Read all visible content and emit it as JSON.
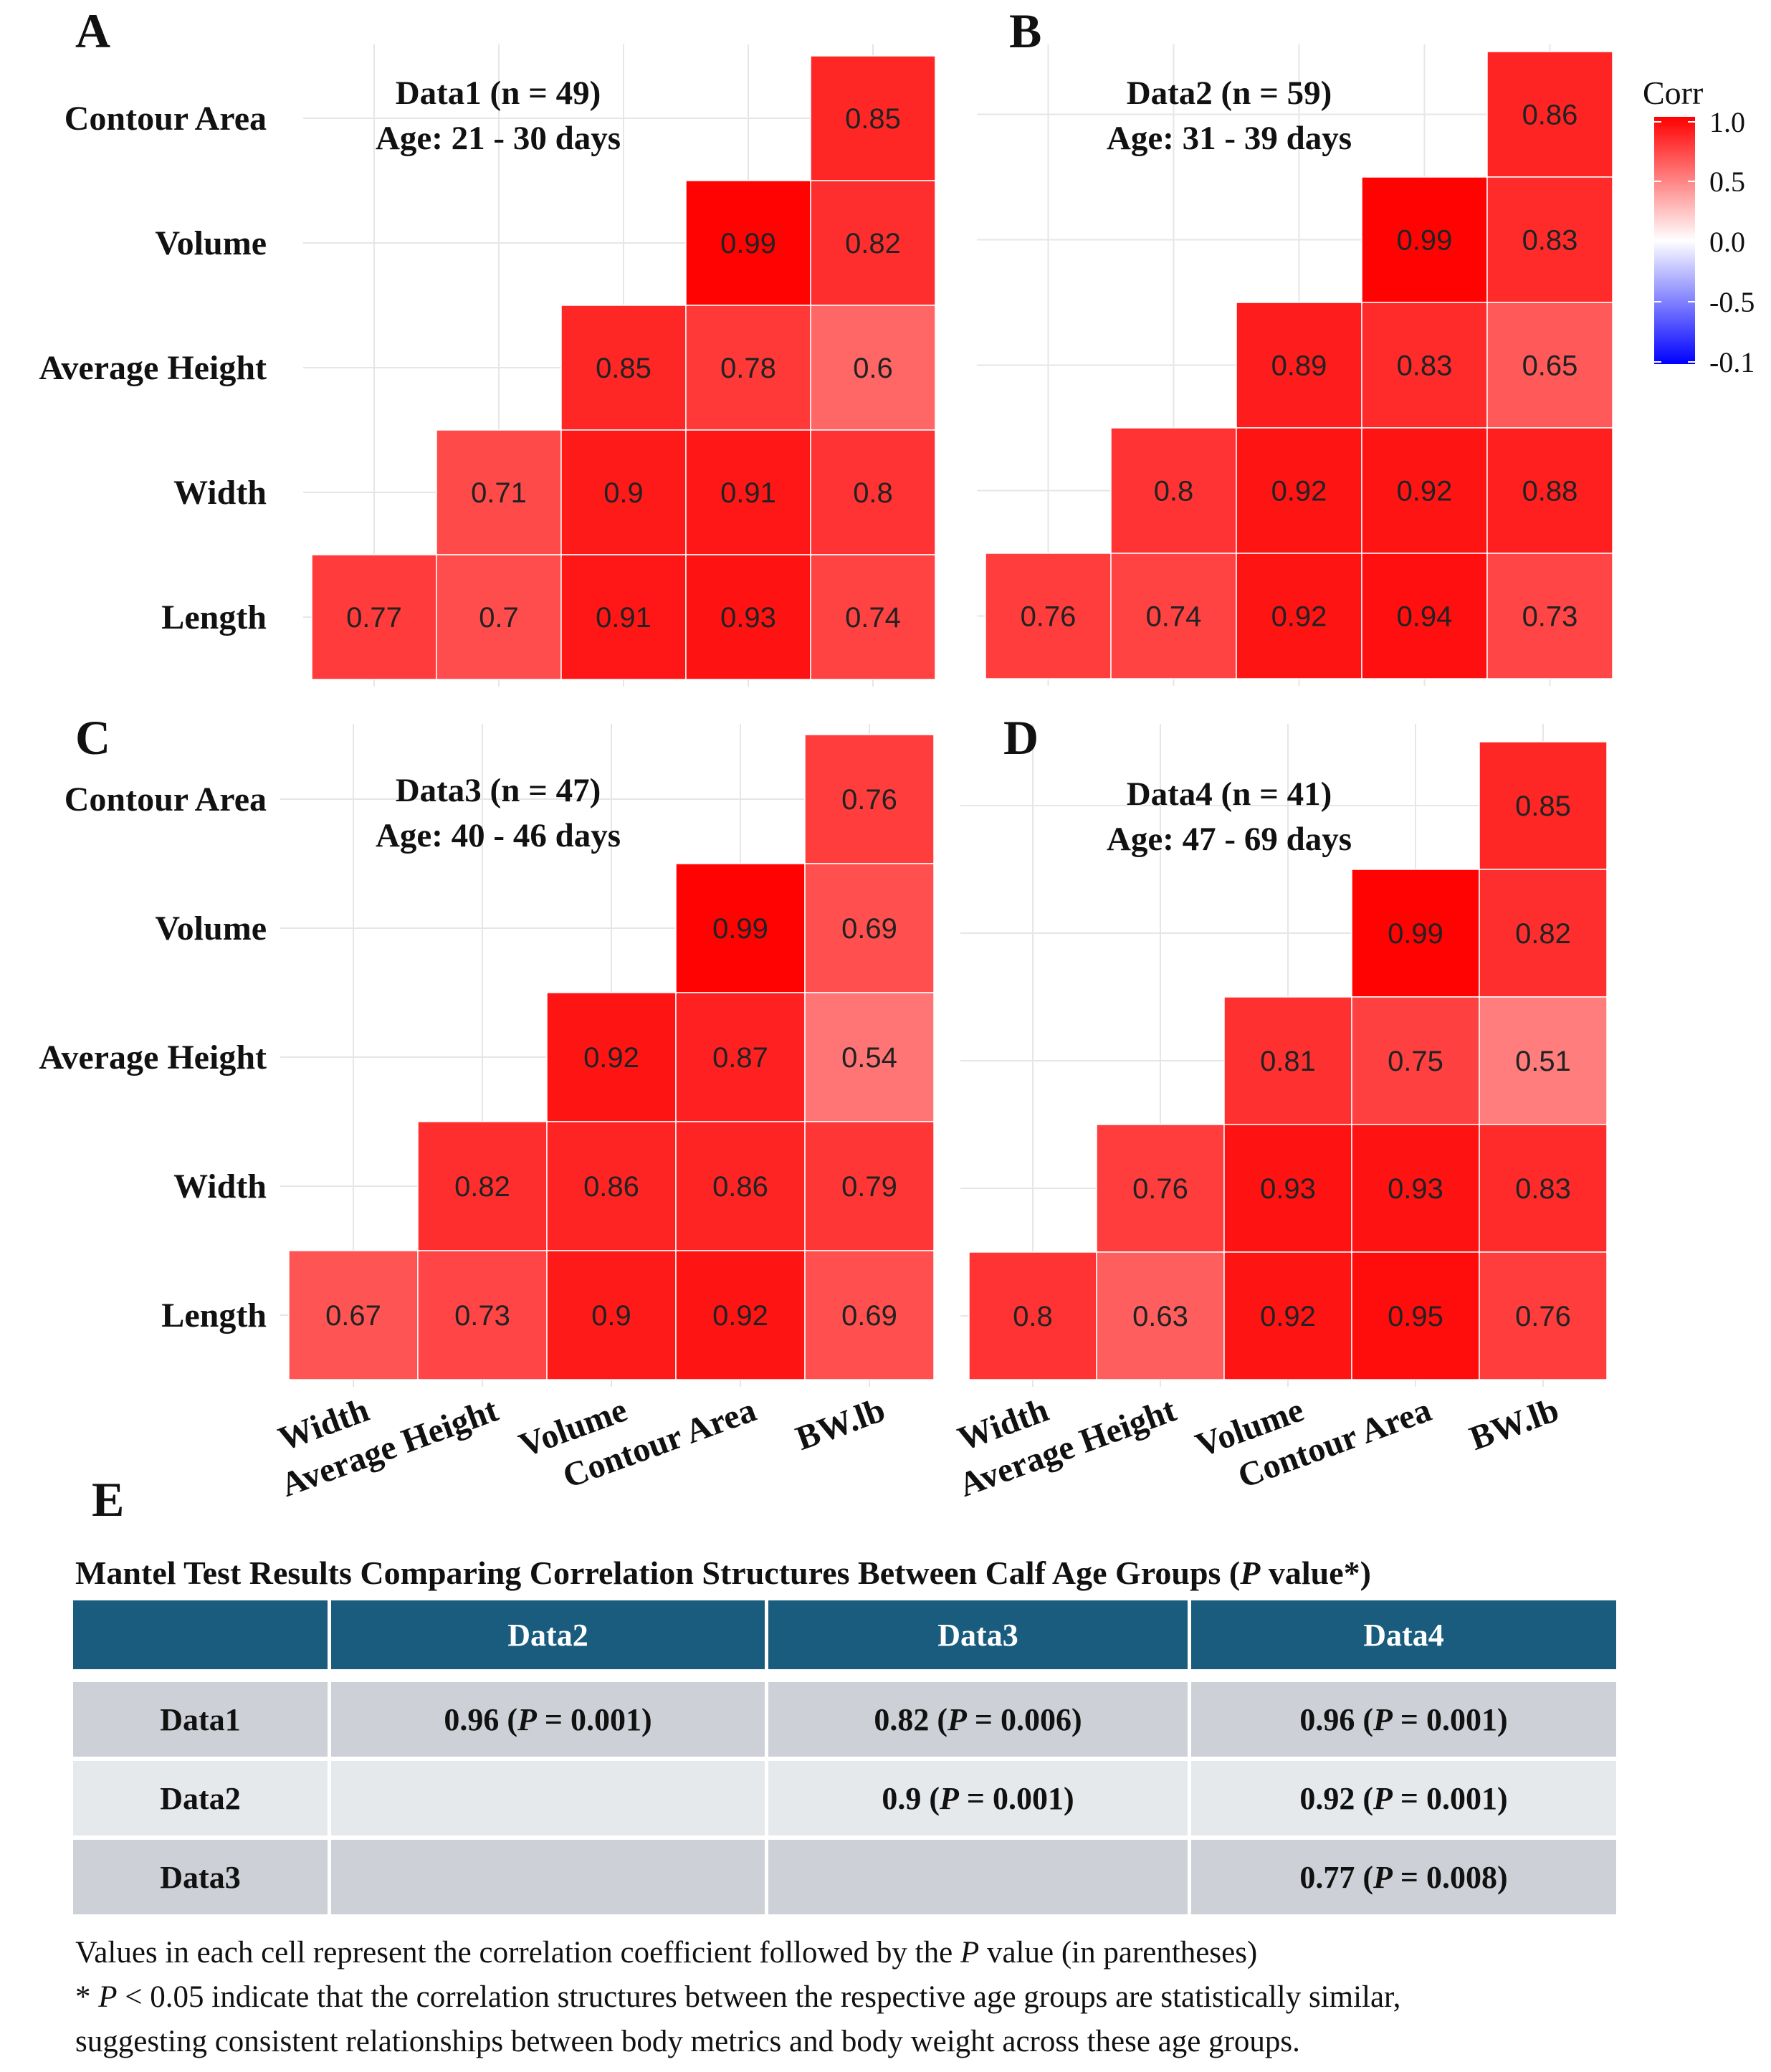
{
  "chart_data": [
    {
      "type": "heatmap",
      "panel_label": "A",
      "title_lines": [
        "Data1 (n = 49)",
        "Age: 21 - 30 days"
      ],
      "rows": [
        "Contour Area",
        "Volume",
        "Average Height",
        "Width",
        "Length"
      ],
      "columns": [
        "Width",
        "Average Height",
        "Volume",
        "Contour Area",
        "BW.lb"
      ],
      "values": [
        [
          null,
          null,
          null,
          null,
          0.85
        ],
        [
          null,
          null,
          null,
          0.99,
          0.82
        ],
        [
          null,
          null,
          0.85,
          0.78,
          0.6
        ],
        [
          null,
          0.71,
          0.9,
          0.91,
          0.8
        ],
        [
          0.77,
          0.7,
          0.91,
          0.93,
          0.74
        ]
      ],
      "show_x_labels": false
    },
    {
      "type": "heatmap",
      "panel_label": "B",
      "title_lines": [
        "Data2 (n = 59)",
        "Age: 31 - 39 days"
      ],
      "rows": [
        "Contour Area",
        "Volume",
        "Average Height",
        "Width",
        "Length"
      ],
      "columns": [
        "Width",
        "Average Height",
        "Volume",
        "Contour Area",
        "BW.lb"
      ],
      "values": [
        [
          null,
          null,
          null,
          null,
          0.86
        ],
        [
          null,
          null,
          null,
          0.99,
          0.83
        ],
        [
          null,
          null,
          0.89,
          0.83,
          0.65
        ],
        [
          null,
          0.8,
          0.92,
          0.92,
          0.88
        ],
        [
          0.76,
          0.74,
          0.92,
          0.94,
          0.73
        ]
      ],
      "show_x_labels": false
    },
    {
      "type": "heatmap",
      "panel_label": "C",
      "title_lines": [
        "Data3 (n = 47)",
        "Age: 40 - 46 days"
      ],
      "rows": [
        "Contour Area",
        "Volume",
        "Average Height",
        "Width",
        "Length"
      ],
      "columns": [
        "Width",
        "Average Height",
        "Volume",
        "Contour Area",
        "BW.lb"
      ],
      "values": [
        [
          null,
          null,
          null,
          null,
          0.76
        ],
        [
          null,
          null,
          null,
          0.99,
          0.69
        ],
        [
          null,
          null,
          0.92,
          0.87,
          0.54
        ],
        [
          null,
          0.82,
          0.86,
          0.86,
          0.79
        ],
        [
          0.67,
          0.73,
          0.9,
          0.92,
          0.69
        ]
      ],
      "show_x_labels": true
    },
    {
      "type": "heatmap",
      "panel_label": "D",
      "title_lines": [
        "Data4 (n = 41)",
        "Age: 47 -  69 days"
      ],
      "rows": [
        "Contour Area",
        "Volume",
        "Average Height",
        "Width",
        "Length"
      ],
      "columns": [
        "Width",
        "Average Height",
        "Volume",
        "Contour Area",
        "BW.lb"
      ],
      "values": [
        [
          null,
          null,
          null,
          null,
          0.85
        ],
        [
          null,
          null,
          null,
          0.99,
          0.82
        ],
        [
          null,
          null,
          0.81,
          0.75,
          0.51
        ],
        [
          null,
          0.76,
          0.93,
          0.93,
          0.83
        ],
        [
          0.8,
          0.63,
          0.92,
          0.95,
          0.76
        ]
      ],
      "show_x_labels": true
    }
  ],
  "legend": {
    "title": "Corr",
    "ticks": [
      "1.0",
      "0.5",
      "0.0",
      "-0.5",
      "-0.1"
    ],
    "colors": {
      "high": "#ff0000",
      "mid": "#ffffff",
      "low": "#0000ff"
    }
  },
  "table": {
    "panel_label": "E",
    "title_prefix": "Mantel Test Results Comparing Correlation Structures Between Calf Age Groups (",
    "title_italic": "P",
    "title_suffix": " value*)",
    "columns": [
      "",
      "Data2",
      "Data3",
      "Data4"
    ],
    "rows": [
      {
        "label": "Data1",
        "cells": [
          {
            "a": "0.96 (",
            "p": "P",
            "b": " = 0.001)"
          },
          {
            "a": "0.82  (",
            "p": "P",
            "b": " = 0.006)"
          },
          {
            "a": "0.96 (",
            "p": "P",
            "b": " = 0.001)"
          }
        ]
      },
      {
        "label": "Data2",
        "cells": [
          null,
          {
            "a": "0.9 (",
            "p": "P",
            "b": " = 0.001)"
          },
          {
            "a": "0.92 (",
            "p": "P",
            "b": " = 0.001)"
          }
        ]
      },
      {
        "label": "Data3",
        "cells": [
          null,
          null,
          {
            "a": "0.77 (",
            "p": "P",
            "b": " = 0.008)"
          }
        ]
      }
    ],
    "header_color": "#1a5c7d",
    "row_colors": [
      "#cdd1d7",
      "#e6e9ec",
      "#cdd1d7"
    ]
  },
  "footnotes": {
    "line1_a": "Values in each cell represent the correlation coefficient followed by the ",
    "line1_p": "P",
    "line1_b": " value (in parentheses)",
    "line2_a": "* ",
    "line2_p": "P",
    "line2_b": " < 0.05  indicate that the correlation structures between the respective age groups are statistically similar,",
    "line3": "suggesting consistent relationships between body metrics and body weight across these age groups."
  }
}
